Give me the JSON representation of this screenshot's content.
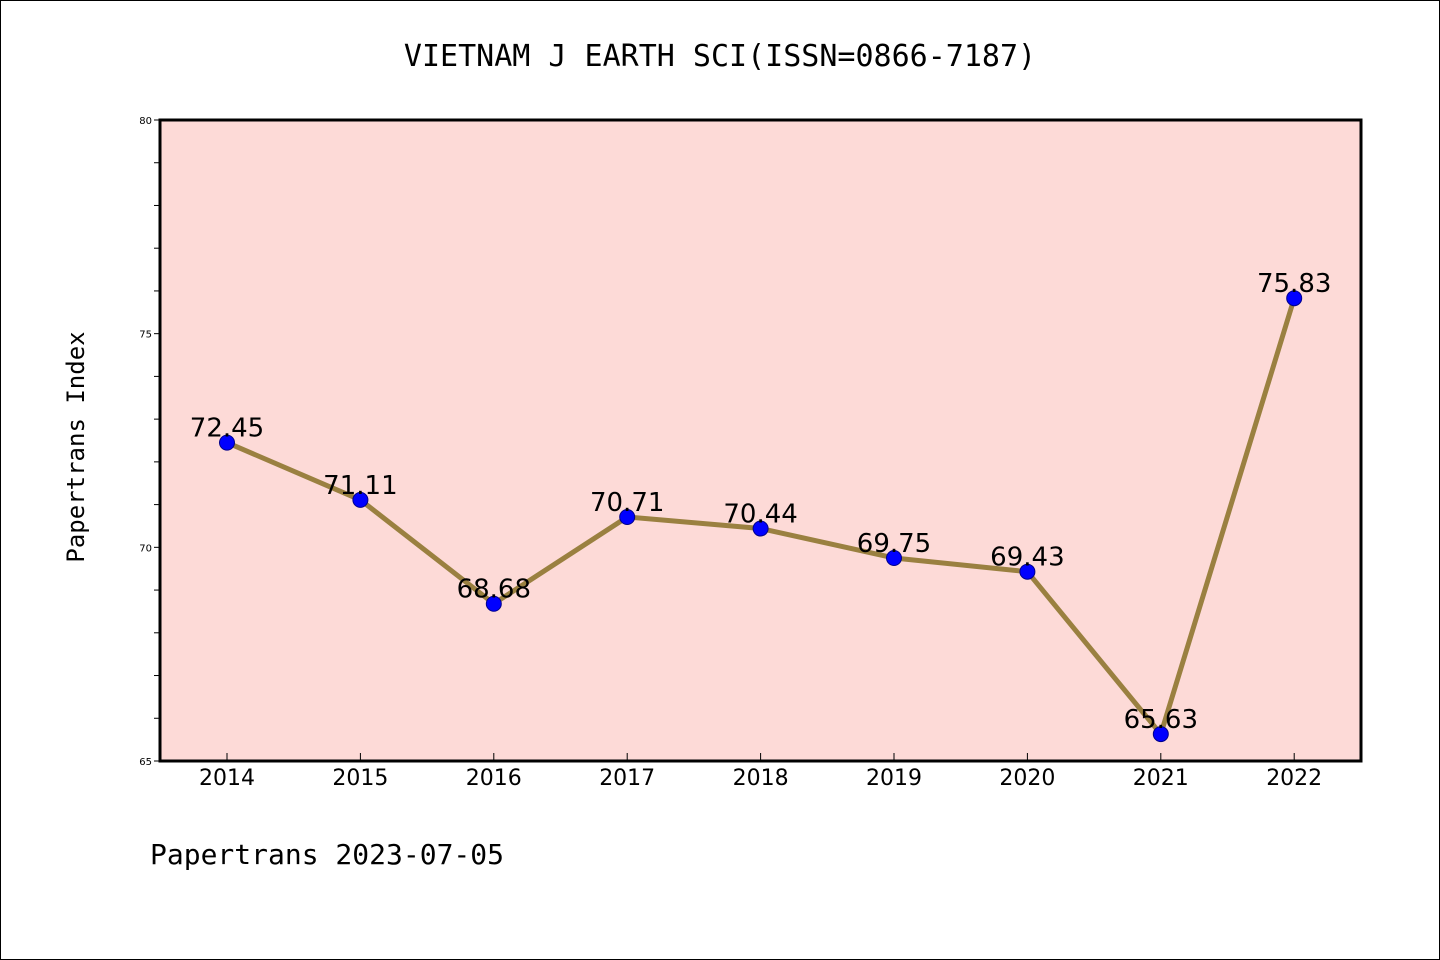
{
  "chart_data": {
    "type": "line",
    "title": "VIETNAM J EARTH SCI(ISSN=0866-7187)",
    "ylabel": "Papertrans Index",
    "xlabel": "",
    "footer": "Papertrans 2023-07-05",
    "categories": [
      "2014",
      "2015",
      "2016",
      "2017",
      "2018",
      "2019",
      "2020",
      "2021",
      "2022"
    ],
    "series": [
      {
        "values": [
          72.45,
          71.11,
          68.68,
          70.71,
          70.44,
          69.75,
          69.43,
          65.63,
          75.83
        ],
        "labels": [
          "72.45",
          "71.11",
          "68.68",
          "70.71",
          "70.44",
          "69.75",
          "69.43",
          "65.63",
          "75.83"
        ]
      }
    ],
    "ylim": [
      65,
      80
    ],
    "yticks": [
      "65",
      "70",
      "75",
      "80"
    ],
    "yminor_step": 1,
    "grid": false,
    "colors": {
      "plot_background": "#fddad7",
      "line": "#9a8040",
      "marker": "#0000ff"
    }
  }
}
